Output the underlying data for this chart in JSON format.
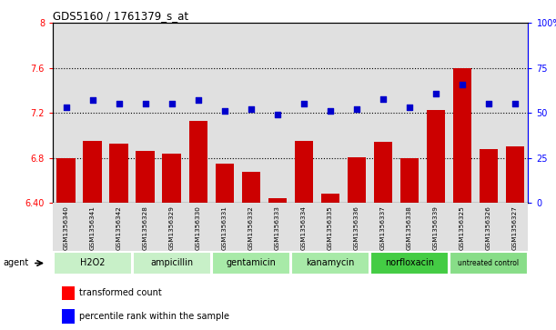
{
  "title": "GDS5160 / 1761379_s_at",
  "samples": [
    "GSM1356340",
    "GSM1356341",
    "GSM1356342",
    "GSM1356328",
    "GSM1356329",
    "GSM1356330",
    "GSM1356331",
    "GSM1356332",
    "GSM1356333",
    "GSM1356334",
    "GSM1356335",
    "GSM1356336",
    "GSM1356337",
    "GSM1356338",
    "GSM1356339",
    "GSM1356325",
    "GSM1356326",
    "GSM1356327"
  ],
  "bar_values": [
    6.8,
    6.95,
    6.93,
    6.86,
    6.84,
    7.13,
    6.75,
    6.68,
    6.44,
    6.95,
    6.48,
    6.81,
    6.94,
    6.8,
    7.23,
    7.6,
    6.88,
    6.9
  ],
  "dot_values": [
    53,
    57,
    55,
    55,
    55,
    57,
    51,
    52,
    49,
    55,
    51,
    52,
    58,
    53,
    61,
    66,
    55,
    55
  ],
  "groups": [
    {
      "label": "H2O2",
      "start": 0,
      "end": 2,
      "color": "#c8f0c8"
    },
    {
      "label": "ampicillin",
      "start": 3,
      "end": 5,
      "color": "#c8f0c8"
    },
    {
      "label": "gentamicin",
      "start": 6,
      "end": 8,
      "color": "#a8eaa8"
    },
    {
      "label": "kanamycin",
      "start": 9,
      "end": 11,
      "color": "#a8eaa8"
    },
    {
      "label": "norfloxacin",
      "start": 12,
      "end": 14,
      "color": "#44cc44"
    },
    {
      "label": "untreated control",
      "start": 15,
      "end": 17,
      "color": "#88dd88"
    }
  ],
  "ylim_left": [
    6.4,
    8.0
  ],
  "ylim_right": [
    0,
    100
  ],
  "yticks_left": [
    6.4,
    6.8,
    7.2,
    7.6,
    8.0
  ],
  "ytick_labels_left": [
    "6.40",
    "6.8",
    "7.2",
    "7.6",
    "8"
  ],
  "yticks_right": [
    0,
    25,
    50,
    75,
    100
  ],
  "ytick_labels_right": [
    "0",
    "25",
    "50",
    "75",
    "100%"
  ],
  "hlines": [
    6.8,
    7.2,
    7.6
  ],
  "bar_color": "#cc0000",
  "dot_color": "#0000cc",
  "bar_width": 0.7,
  "col_bg_color": "#e0e0e0",
  "agent_label": "agent",
  "legend_bar": "transformed count",
  "legend_dot": "percentile rank within the sample"
}
